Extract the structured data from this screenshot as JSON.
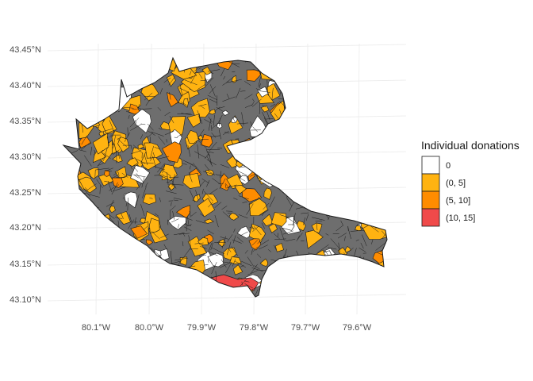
{
  "map": {
    "x_ticks": [
      "80.1°W",
      "80.0°W",
      "79.9°W",
      "79.8°W",
      "79.7°W",
      "79.6°W"
    ],
    "y_ticks": [
      "43.10°N",
      "43.15°N",
      "43.20°N",
      "43.25°N",
      "43.30°N",
      "43.35°N",
      "43.40°N",
      "43.45°N"
    ],
    "legend": {
      "title": "Individual donations",
      "items": [
        {
          "label": "0",
          "color": "#ffffff"
        },
        {
          "label": "(0, 5]",
          "color": "#ffb311"
        },
        {
          "label": "(5, 10]",
          "color": "#ff8c00"
        },
        {
          "label": "(10, 15]",
          "color": "#f04a4a"
        }
      ]
    },
    "colors": {
      "no_data": "#6e6e6e",
      "border": "#1a1a1a",
      "grid": "#ebebeb"
    }
  }
}
